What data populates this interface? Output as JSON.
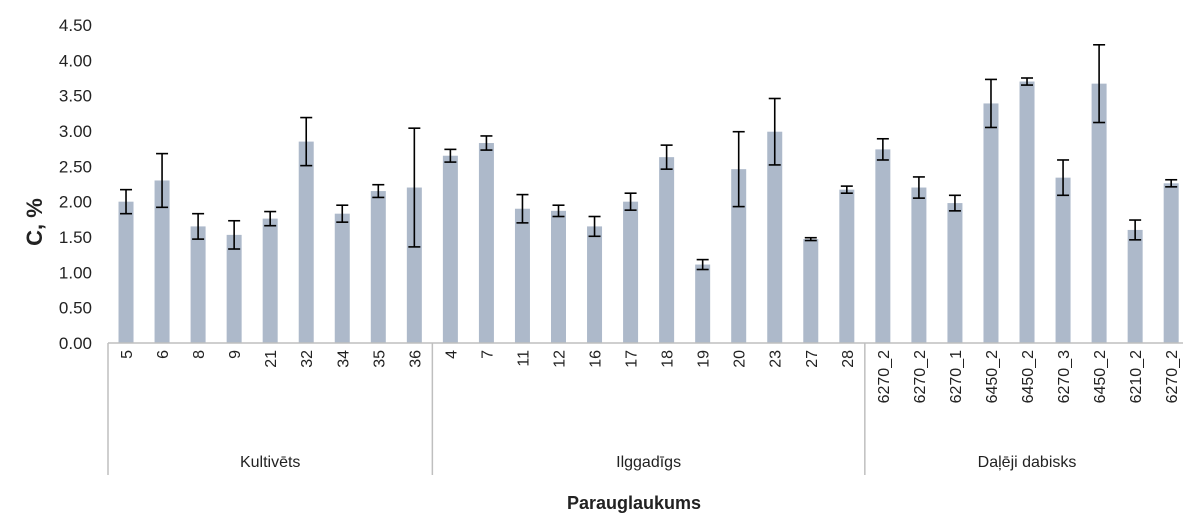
{
  "chart_data": {
    "type": "bar",
    "xlabel": "Parauglaukums",
    "ylabel": "C, %",
    "ylim": [
      0,
      4.5
    ],
    "yticks": [
      "0.00",
      "0.50",
      "1.00",
      "1.50",
      "2.00",
      "2.50",
      "3.00",
      "3.50",
      "4.00",
      "4.50"
    ],
    "grid": false,
    "colors": {
      "bar": "#adb9ca",
      "error_bar": "#000000",
      "axis": "#bfbfbf"
    },
    "groups": [
      {
        "name": "Kultivēts",
        "count": 9
      },
      {
        "name": "Ilggadīgs",
        "count": 12
      },
      {
        "name": "Daļēji dabisks",
        "count": 9
      }
    ],
    "categories": [
      "5",
      "6",
      "8",
      "9",
      "21",
      "32",
      "34",
      "35",
      "36",
      "4",
      "7",
      "11",
      "12",
      "16",
      "17",
      "18",
      "19",
      "20",
      "23",
      "27",
      "28",
      "6270_2",
      "6270_2",
      "6270_1",
      "6450_2",
      "6450_2",
      "6270_3",
      "6450_2",
      "6210_2",
      "6270_2"
    ],
    "values": [
      2.0,
      2.3,
      1.65,
      1.53,
      1.76,
      2.85,
      1.83,
      2.15,
      2.2,
      2.65,
      2.83,
      1.9,
      1.87,
      1.65,
      2.0,
      2.63,
      1.11,
      2.46,
      2.99,
      1.47,
      2.17,
      2.74,
      2.2,
      1.98,
      3.39,
      3.7,
      2.34,
      3.67,
      1.6,
      2.26
    ],
    "errors": [
      0.17,
      0.38,
      0.18,
      0.2,
      0.1,
      0.34,
      0.12,
      0.09,
      0.84,
      0.09,
      0.1,
      0.2,
      0.08,
      0.14,
      0.12,
      0.17,
      0.07,
      0.53,
      0.47,
      0.02,
      0.05,
      0.15,
      0.15,
      0.11,
      0.34,
      0.05,
      0.25,
      0.55,
      0.14,
      0.05
    ]
  }
}
